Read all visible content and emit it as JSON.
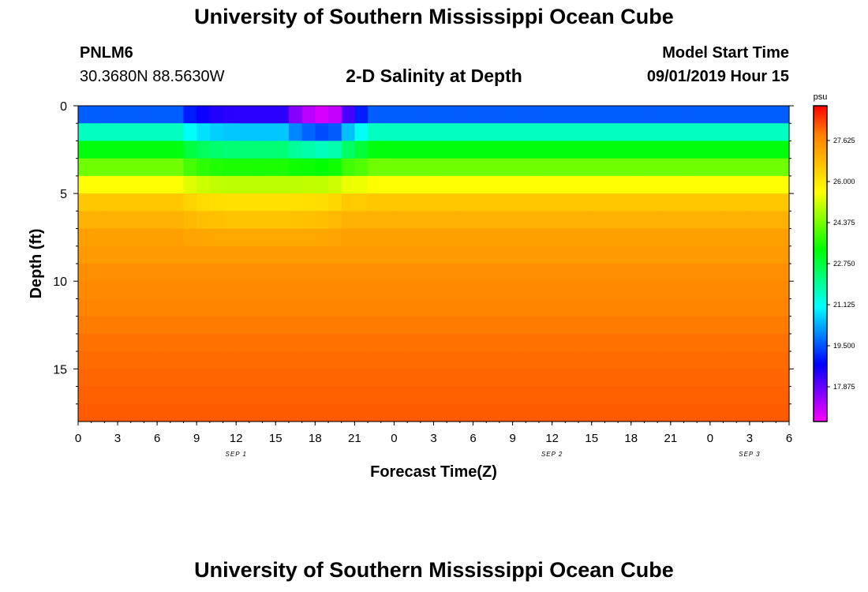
{
  "header": {
    "title": "University of Southern Mississippi Ocean Cube",
    "station_id": "PNLM6",
    "coordinates": "30.3680N 88.5630W",
    "subtitle": "2-D Salinity at Depth",
    "model_start_label": "Model Start Time",
    "model_start_time": "09/01/2019 Hour 15"
  },
  "footer": {
    "title": "University of Southern Mississippi Ocean Cube"
  },
  "chart_data": {
    "type": "heatmap",
    "title": "2-D Salinity at Depth",
    "xlabel": "Forecast Time(Z)",
    "ylabel": "Depth (ft)",
    "units": "psu",
    "x_tick_labels": [
      "0",
      "3",
      "6",
      "9",
      "12",
      "15",
      "18",
      "21",
      "0",
      "3",
      "6",
      "9",
      "12",
      "15",
      "18",
      "21",
      "0",
      "3",
      "6"
    ],
    "x_range_hours": [
      0,
      54
    ],
    "date_labels": [
      {
        "text": "SEP 1",
        "hour": 12
      },
      {
        "text": "SEP 2",
        "hour": 36
      },
      {
        "text": "SEP 3",
        "hour": 51
      }
    ],
    "y_ticks": [
      0,
      5,
      10,
      15
    ],
    "y_range_ft": [
      0,
      18
    ],
    "y_reversed": true,
    "colorbar_ticks": [
      17.875,
      19.5,
      21.125,
      22.75,
      24.375,
      26.0,
      27.625
    ],
    "colorbar_tick_labels": [
      "17.875",
      "19.500",
      "21.125",
      "22.750",
      "24.375",
      "26.000",
      "27.625"
    ],
    "color_range": [
      16.5,
      29.0
    ],
    "color_scale": [
      "#ff00ff",
      "#7f00ff",
      "#0000ff",
      "#0080ff",
      "#00ffff",
      "#00ff80",
      "#00ff00",
      "#80ff00",
      "#ffff00",
      "#ffc000",
      "#ff8000",
      "#ff0000"
    ],
    "mesh": {
      "time_step_hours": 1,
      "depth_levels": 18
    },
    "profile": {
      "base_salinity": [
        19.6,
        21.6,
        23.2,
        24.3,
        25.6,
        26.6,
        27.0,
        27.3,
        27.4,
        27.6,
        27.7,
        27.8,
        27.9,
        28.0,
        28.05,
        28.1,
        28.15,
        28.2
      ],
      "intrusion_events": [
        {
          "start_hour": 7.5,
          "end_hour": 20.5,
          "strength": 1.3,
          "depth_extent_ft": 8.5
        },
        {
          "start_hour": 16.0,
          "end_hour": 21.0,
          "strength": 1.6,
          "depth_extent_ft": 4.0
        },
        {
          "start_hour": 18.0,
          "end_hour": 22.5,
          "strength": 0.7,
          "depth_extent_ft": 6.0
        }
      ]
    }
  }
}
